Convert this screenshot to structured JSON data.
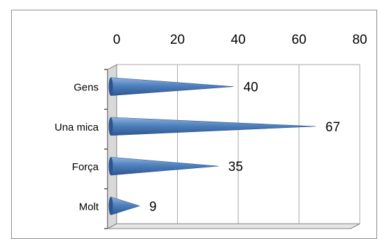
{
  "chart_data": {
    "type": "bar",
    "orientation": "horizontal",
    "style": "3d-cone",
    "categories": [
      "Gens",
      "Una mica",
      "Força",
      "Molt"
    ],
    "values": [
      40,
      67,
      35,
      9
    ],
    "data_labels": [
      "40",
      "67",
      "35",
      "9"
    ],
    "x_ticks": [
      "0",
      "20",
      "40",
      "60",
      "80"
    ],
    "xlim": [
      0,
      80
    ],
    "x_axis_position": "top",
    "grid": true,
    "legend": "none",
    "title": "",
    "xlabel": "",
    "ylabel": "",
    "colors": {
      "series": "#4f81bd",
      "series_dark": "#2c5590",
      "series_light": "#8fb3e0",
      "grid": "#a6a6a6",
      "axis": "#000000",
      "wall": "#d9d9d9"
    }
  }
}
